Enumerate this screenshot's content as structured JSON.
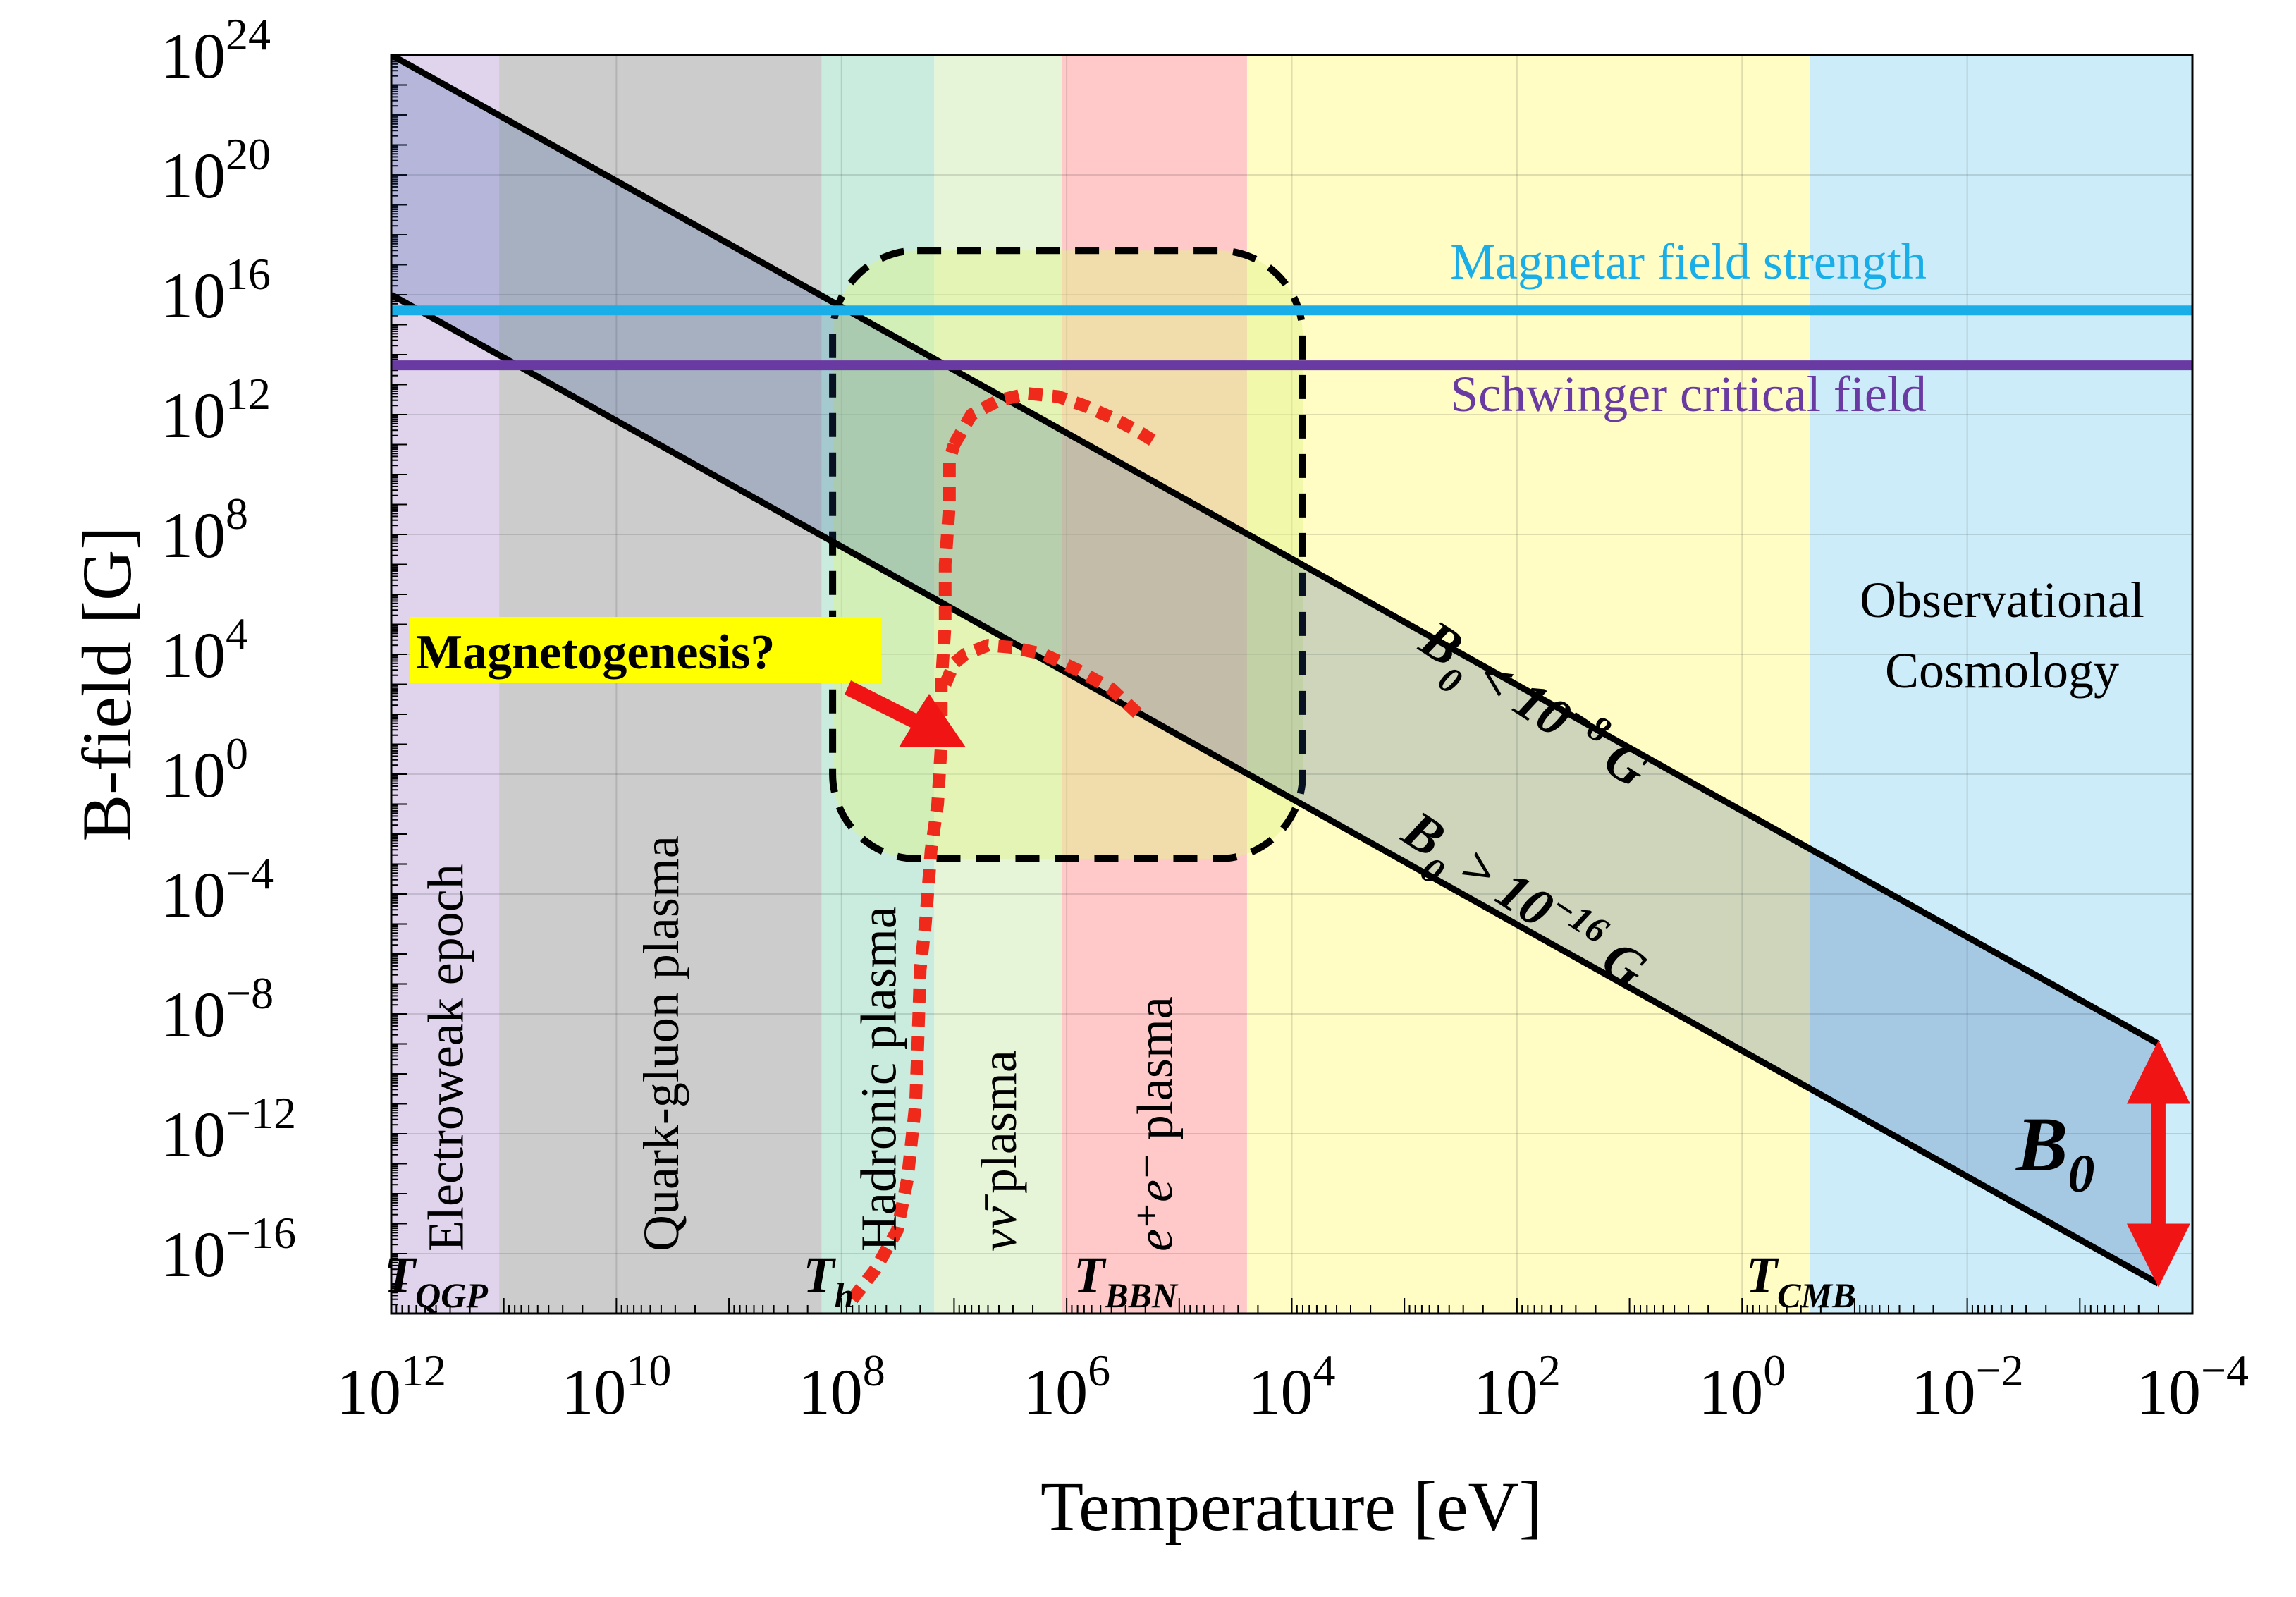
{
  "chart_data": {
    "type": "line",
    "xlabel": "Temperature [eV]",
    "ylabel": "B-field [G]",
    "x_scale": "log",
    "y_scale": "log",
    "x_direction": "decreasing",
    "xlim": [
      1000000000000.0,
      0.0001
    ],
    "ylim": [
      1e-18,
      1e+24
    ],
    "grid": true,
    "x_ticks": [
      {
        "value": 1000000000000.0,
        "base": "10",
        "exp": "12"
      },
      {
        "value": 10000000000.0,
        "base": "10",
        "exp": "10"
      },
      {
        "value": 100000000.0,
        "base": "10",
        "exp": "8"
      },
      {
        "value": 1000000.0,
        "base": "10",
        "exp": "6"
      },
      {
        "value": 10000.0,
        "base": "10",
        "exp": "4"
      },
      {
        "value": 100.0,
        "base": "10",
        "exp": "2"
      },
      {
        "value": 1,
        "base": "10",
        "exp": "0"
      },
      {
        "value": 0.01,
        "base": "10",
        "exp": "−2"
      },
      {
        "value": 0.0001,
        "base": "10",
        "exp": "−4"
      }
    ],
    "y_ticks": [
      {
        "value": 1e+24,
        "base": "10",
        "exp": "24"
      },
      {
        "value": 1e+20,
        "base": "10",
        "exp": "20"
      },
      {
        "value": 1e+16,
        "base": "10",
        "exp": "16"
      },
      {
        "value": 1000000000000.0,
        "base": "10",
        "exp": "12"
      },
      {
        "value": 100000000.0,
        "base": "10",
        "exp": "8"
      },
      {
        "value": 10000.0,
        "base": "10",
        "exp": "4"
      },
      {
        "value": 1,
        "base": "10",
        "exp": "0"
      },
      {
        "value": 0.0001,
        "base": "10",
        "exp": "−4"
      },
      {
        "value": 1e-08,
        "base": "10",
        "exp": "−8"
      },
      {
        "value": 1e-12,
        "base": "10",
        "exp": "−12"
      },
      {
        "value": 1e-16,
        "base": "10",
        "exp": "−16"
      }
    ],
    "regions": [
      {
        "label": "Electroweak epoch",
        "x_from": 1000000000000.0,
        "x_to": 110000000000.0,
        "color": "#e0d4ec"
      },
      {
        "label": "Quark-gluon plasma",
        "x_from": 110000000000.0,
        "x_to": 150000000.0,
        "color": "#cccccc"
      },
      {
        "label": "Hadronic plasma",
        "x_from": 150000000.0,
        "x_to": 15000000.0,
        "color": "#c9ecde"
      },
      {
        "label_pre": "νν̄",
        "label_post": " plasma",
        "x_from": 15000000.0,
        "x_to": 1100000.0,
        "color": "#e6f5d8"
      },
      {
        "label_pre": "e⁺e⁻",
        "label_post": " plasma",
        "x_from": 1100000.0,
        "x_to": 25000.0,
        "color": "#ffc9c9"
      },
      {
        "label": "",
        "x_from": 25000.0,
        "x_to": 0.25,
        "color": "#fffcc4"
      },
      {
        "label": "",
        "x_from": 0.25,
        "x_to": 0.0001,
        "color": "#cbecf8"
      }
    ],
    "series": [
      {
        "name": "B₀ < 10⁻⁸ G",
        "color": "#000000",
        "x": [
          1000000000000.0,
          0.0002
        ],
        "y": [
          1e+24,
          1e-09
        ]
      },
      {
        "name": "B₀ > 10⁻¹⁶ G",
        "color": "#000000",
        "x": [
          1000000000000.0,
          0.0002
        ],
        "y": [
          1e+16,
          1e-17
        ]
      }
    ],
    "hlines": [
      {
        "name": "Magnetar field strength",
        "y": 3000000000000000.0,
        "color": "#1aaee8"
      },
      {
        "name": "Schwinger critical field",
        "y": 44000000000000.0,
        "color": "#6a3aa3"
      }
    ],
    "temperature_markers": [
      {
        "base": "T",
        "sub": "QGP",
        "x": 400000000000.0
      },
      {
        "base": "T",
        "sub": "h",
        "x": 130000000.0
      },
      {
        "base": "T",
        "sub": "BBN",
        "x": 300000.0
      },
      {
        "base": "T",
        "sub": "CMB",
        "x": 0.3
      }
    ],
    "magnetogenesis_curve": {
      "color": "#f02a1a",
      "branch_main": {
        "x": [
          80000000.0,
          50000000.0,
          32000000.0,
          26000000.0,
          22000000.0,
          21000000.0,
          20000000.0,
          18000000.0,
          16000000.0,
          14000000.0,
          13000000.0,
          13000000.0,
          12000000.0,
          12000000.0,
          11000000.0,
          11000000.0,
          10000000.0
        ],
        "y": [
          3e-18,
          3e-17,
          6e-16,
          3e-14,
          1e-11,
          1e-09,
          3e-07,
          1e-05,
          0.003,
          0.1,
          10,
          1000.0,
          100000.0,
          10000000.0,
          1000000000.0,
          30000000000.0,
          100000000000.0
        ]
      },
      "branch_upper": {
        "x": [
          10000000.0,
          7000000.0,
          4000000.0,
          2200000.0,
          1200000.0,
          700000.0,
          400000.0,
          240000.0,
          150000.0
        ],
        "y": [
          100000000000.0,
          1000000000000.0,
          3000000000000.0,
          5000000000000.0,
          4000000000000.0,
          2000000000000.0,
          800000000000.0,
          300000000000.0,
          100000000000.0
        ]
      },
      "branch_lower": {
        "x": [
          12000000.0,
          10000000.0,
          8000000.0,
          5000000.0,
          3000000.0,
          1600000.0,
          800000.0,
          400000.0,
          230000.0
        ],
        "y": [
          1000.0,
          5000.0,
          10000.0,
          20000.0,
          17000.0,
          10000.0,
          3000.0,
          700,
          100
        ]
      }
    },
    "magnetogenesis_box": {
      "x_from": 120000000.0,
      "x_to": 8000.0,
      "y_from": 0.0015,
      "y_to": 3e+17
    },
    "annotations": {
      "magnetogenesis": "Magnetogenesis?",
      "observational_1": "Observational",
      "observational_2": "Cosmology",
      "b0_base": "B",
      "b0_sub": "0",
      "upper_band": {
        "base": "B",
        "sub": "0",
        "rest": " < 10",
        "exp": "−8",
        "unit": " G"
      },
      "lower_band": {
        "base": "B",
        "sub": "0",
        "rest": " > 10",
        "exp": "−16",
        "unit": " G"
      }
    },
    "b0_arrow": {
      "x": 0.0002,
      "y_from": 1e-17,
      "y_to": 1e-09,
      "color": "#f01414"
    }
  }
}
